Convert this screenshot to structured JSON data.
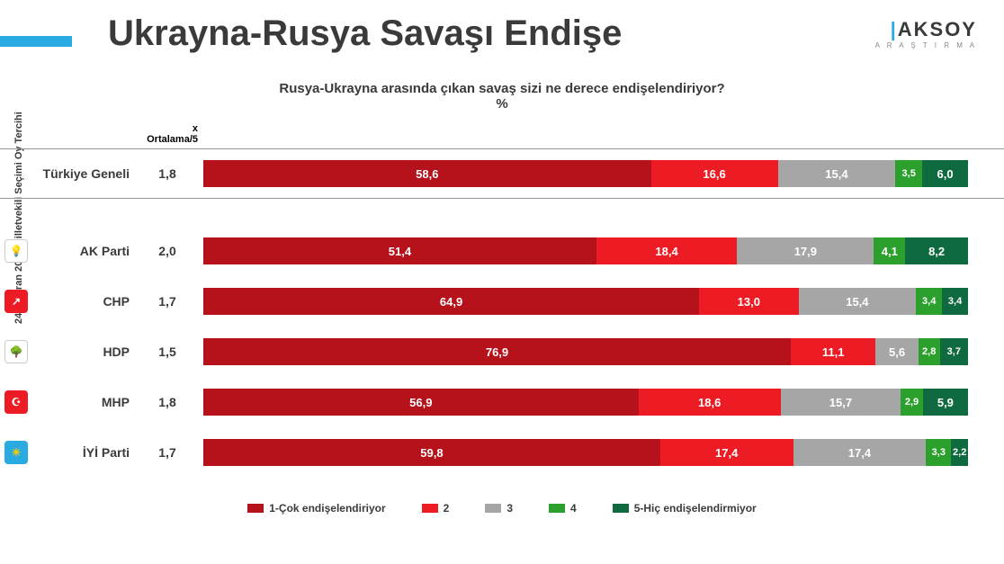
{
  "title": "Ukrayna-Rusya Savaşı Endişe",
  "logo_main": "AKSOY",
  "logo_sub": "A R A Ş T I R M A",
  "question_line1": "Rusya-Ukrayna arasında çıkan savaş sizi ne derece endişelendiriyor?",
  "question_line2": "%",
  "header_x": "x",
  "header_avg": "Ortalama/5",
  "vertical_axis_label": "24 Haziran 2018 Milletvekili Seçimi Oy Tercihi",
  "colors": {
    "c1": "#b5121b",
    "c2": "#ed1c24",
    "c3": "#a6a6a6",
    "c4": "#2ca02c",
    "c5": "#0f6b3f",
    "accent": "#29abe2",
    "text": "#3a3a3a"
  },
  "legend": [
    {
      "label": "1-Çok endişelendiriyor",
      "color": "#b5121b"
    },
    {
      "label": "2",
      "color": "#ed1c24"
    },
    {
      "label": "3",
      "color": "#a6a6a6"
    },
    {
      "label": "4",
      "color": "#2ca02c"
    },
    {
      "label": "5-Hiç endişelendirmiyor",
      "color": "#0f6b3f"
    }
  ],
  "general": {
    "label": "Türkiye Geneli",
    "avg": "1,8",
    "values": [
      {
        "v": 58.6,
        "t": "58,6"
      },
      {
        "v": 16.6,
        "t": "16,6"
      },
      {
        "v": 15.4,
        "t": "15,4"
      },
      {
        "v": 3.5,
        "t": "3,5"
      },
      {
        "v": 6.0,
        "t": "6,0"
      }
    ]
  },
  "parties": [
    {
      "label": "AK Parti",
      "avg": "2,0",
      "icon_bg": "#ffffff",
      "icon_txt": "#f5a623",
      "icon_glyph": "💡",
      "values": [
        {
          "v": 51.4,
          "t": "51,4"
        },
        {
          "v": 18.4,
          "t": "18,4"
        },
        {
          "v": 17.9,
          "t": "17,9"
        },
        {
          "v": 4.1,
          "t": "4,1"
        },
        {
          "v": 8.2,
          "t": "8,2"
        }
      ]
    },
    {
      "label": "CHP",
      "avg": "1,7",
      "icon_bg": "#ed1c24",
      "icon_txt": "#ffffff",
      "icon_glyph": "↗",
      "values": [
        {
          "v": 64.9,
          "t": "64,9"
        },
        {
          "v": 13.0,
          "t": "13,0"
        },
        {
          "v": 15.4,
          "t": "15,4"
        },
        {
          "v": 3.4,
          "t": "3,4"
        },
        {
          "v": 3.4,
          "t": "3,4"
        }
      ]
    },
    {
      "label": "HDP",
      "avg": "1,5",
      "icon_bg": "#ffffff",
      "icon_txt": "#2ca02c",
      "icon_glyph": "🌳",
      "values": [
        {
          "v": 76.9,
          "t": "76,9"
        },
        {
          "v": 11.1,
          "t": "11,1"
        },
        {
          "v": 5.6,
          "t": "5,6"
        },
        {
          "v": 2.8,
          "t": "2,8"
        },
        {
          "v": 3.7,
          "t": "3,7"
        }
      ]
    },
    {
      "label": "MHP",
      "avg": "1,8",
      "icon_bg": "#ed1c24",
      "icon_txt": "#ffffff",
      "icon_glyph": "☪",
      "values": [
        {
          "v": 56.9,
          "t": "56,9"
        },
        {
          "v": 18.6,
          "t": "18,6"
        },
        {
          "v": 15.7,
          "t": "15,7"
        },
        {
          "v": 2.9,
          "t": "2,9"
        },
        {
          "v": 5.9,
          "t": "5,9"
        }
      ]
    },
    {
      "label": "İYİ Parti",
      "avg": "1,7",
      "icon_bg": "#29abe2",
      "icon_txt": "#ffcc00",
      "icon_glyph": "☀",
      "values": [
        {
          "v": 59.8,
          "t": "59,8"
        },
        {
          "v": 17.4,
          "t": "17,4"
        },
        {
          "v": 17.4,
          "t": "17,4"
        },
        {
          "v": 3.3,
          "t": "3,3"
        },
        {
          "v": 2.2,
          "t": "2,2"
        }
      ]
    }
  ]
}
